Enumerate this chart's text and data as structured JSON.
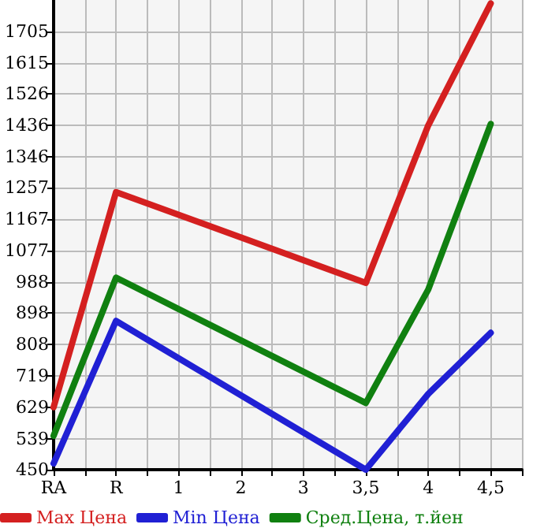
{
  "chart_data": {
    "type": "line",
    "categories": [
      "RA",
      "R",
      "1",
      "2",
      "3",
      "3,5",
      "4",
      "4,5"
    ],
    "series": [
      {
        "name": "Max Цена",
        "color": "#d42020",
        "values": [
          629,
          1245,
          null,
          null,
          null,
          985,
          1436,
          1785
        ]
      },
      {
        "name": "Min Цена",
        "color": "#2020d4",
        "values": [
          468,
          876,
          null,
          null,
          null,
          450,
          667,
          842
        ]
      },
      {
        "name": "Сред.Цена, т.йен",
        "color": "#108010",
        "values": [
          547,
          1000,
          null,
          null,
          null,
          641,
          966,
          1440
        ]
      }
    ],
    "ylim": [
      450,
      1795
    ],
    "yticks": [
      450,
      539,
      629,
      719,
      808,
      898,
      988,
      1077,
      1167,
      1257,
      1346,
      1436,
      1526,
      1615,
      1705
    ],
    "grid": true,
    "legend": "bottom",
    "marker": "none",
    "line_style": "solid"
  }
}
